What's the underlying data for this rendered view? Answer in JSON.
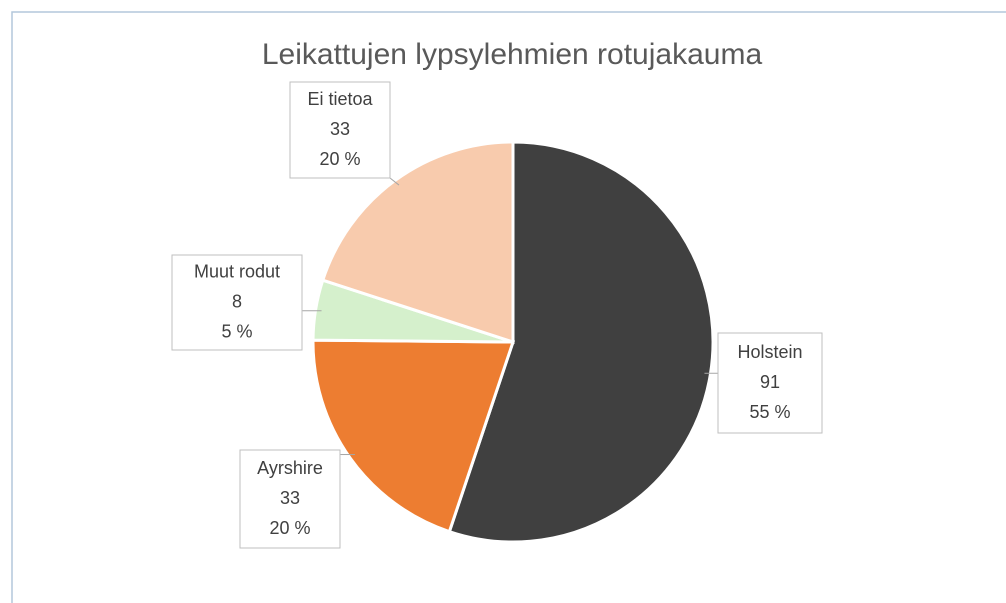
{
  "chart_data": {
    "type": "pie",
    "title": "Leikattujen lypsylehmien rotujakauma",
    "categories": [
      "Holstein",
      "Ayrshire",
      "Muut rodut",
      "Ei tietoa"
    ],
    "values": [
      91,
      33,
      8,
      33
    ],
    "percent_labels": [
      "55 %",
      "20 %",
      "5 %",
      "20 %"
    ],
    "colors": [
      "#404040",
      "#ED7D31",
      "#D5F0CC",
      "#F8CBAD"
    ]
  }
}
